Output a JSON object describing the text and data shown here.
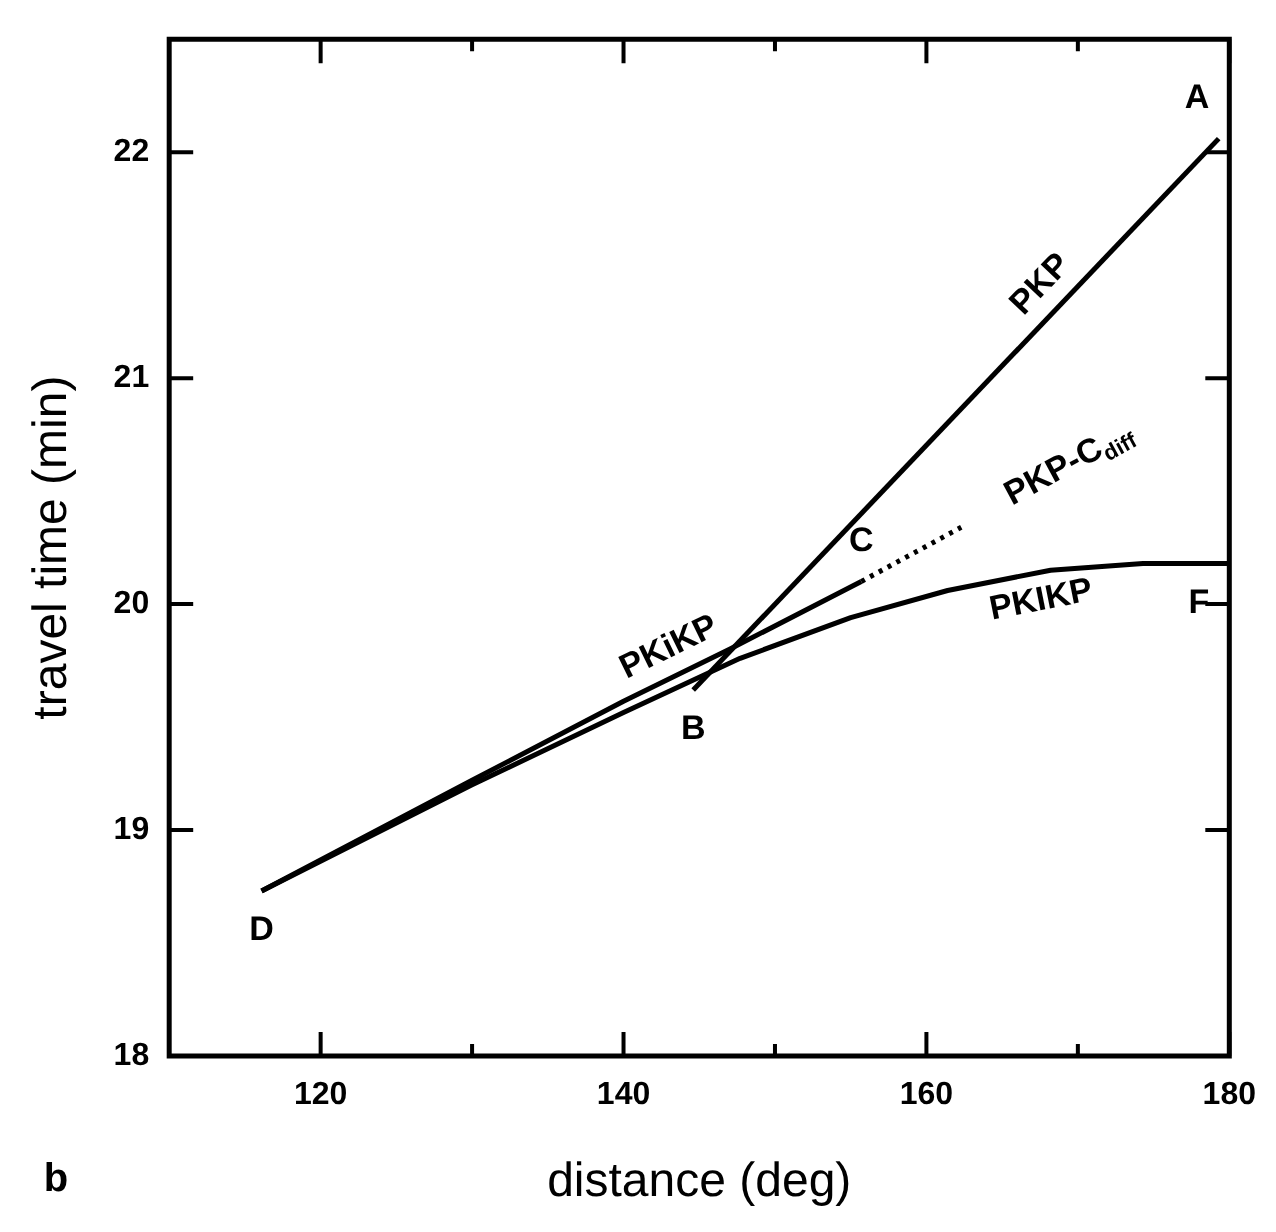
{
  "chart_data": {
    "type": "line",
    "xlabel": "distance (deg)",
    "ylabel": "travel time (min)",
    "xlim": [
      110,
      180
    ],
    "ylim": [
      18,
      22.5
    ],
    "xticks": [
      120,
      {
        "value": 130,
        "label": null
      },
      140,
      {
        "value": 150,
        "label": null
      },
      160,
      {
        "value": 170,
        "label": null
      },
      180
    ],
    "yticks": [
      18,
      19,
      20,
      21,
      22
    ],
    "grid": false,
    "legend": false,
    "marker": "none",
    "series": [
      {
        "name": "PKiKP",
        "color": "#000000",
        "x": [
          116.1,
          130,
          140,
          147,
          155.7
        ],
        "values": [
          18.73,
          19.22,
          19.57,
          19.8,
          20.1
        ]
      },
      {
        "name": "PKIKP",
        "color": "#000000",
        "x": [
          116.1,
          130,
          140,
          147.7,
          155,
          161.4,
          168.2,
          174.3,
          180
        ],
        "values": [
          18.73,
          19.2,
          19.52,
          19.76,
          19.94,
          20.06,
          20.15,
          20.18,
          20.18
        ]
      },
      {
        "name": "PKP",
        "color": "#000000",
        "x": [
          144.6,
          179.3
        ],
        "values": [
          19.62,
          22.06
        ]
      },
      {
        "name": "PKP-C$_{diff}$",
        "color": "#000000",
        "line_style": "dotted",
        "x": [
          155.7,
          162.3
        ],
        "values": [
          20.1,
          20.34
        ]
      }
    ],
    "annotations": [
      {
        "text": "A",
        "x": 179.3,
        "y": 22.06
      },
      {
        "text": "B",
        "x": 144.6,
        "y": 19.62
      },
      {
        "text": "C",
        "x": 155.7,
        "y": 20.1
      },
      {
        "text": "D",
        "x": 116.1,
        "y": 18.73
      },
      {
        "text": "F",
        "x": 180,
        "y": 20.18
      },
      "b"
    ]
  }
}
